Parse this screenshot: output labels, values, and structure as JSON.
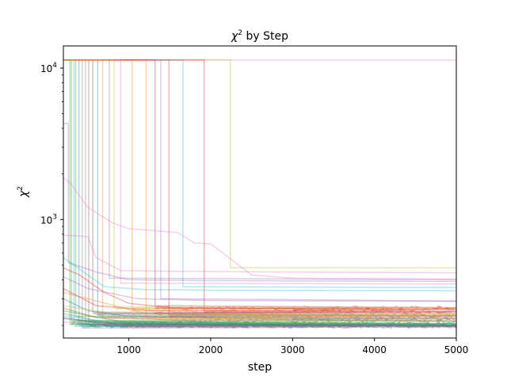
{
  "chart_data": {
    "type": "line",
    "title_prefix": "χ",
    "title_sup": "2",
    "title_suffix": " by Step",
    "xlabel": "step",
    "ylabel_base": "χ",
    "ylabel_sup": "2",
    "xlim": [
      200,
      5000
    ],
    "ylim": [
      165,
      14000
    ],
    "yscale": "log",
    "x_ticks": [
      1000,
      2000,
      3000,
      4000,
      5000
    ],
    "x_tick_labels": [
      "1000",
      "2000",
      "3000",
      "4000",
      "5000"
    ],
    "y_ticks": [
      1000,
      10000
    ],
    "y_tick_base": "10",
    "y_tick_exponents": [
      "3",
      "4"
    ],
    "series_alpha": 0.35,
    "series": [
      {
        "color": "#1f77b4",
        "values": [
          [
            200,
            11300
          ],
          [
            390,
            11300
          ],
          [
            390,
            205
          ],
          [
            5000,
            198
          ]
        ]
      },
      {
        "color": "#ff7f0e",
        "values": [
          [
            200,
            11300
          ],
          [
            1040,
            11300
          ],
          [
            1040,
            260
          ],
          [
            5000,
            255
          ]
        ]
      },
      {
        "color": "#2ca02c",
        "values": [
          [
            200,
            11300
          ],
          [
            300,
            11300
          ],
          [
            300,
            215
          ],
          [
            5000,
            205
          ]
        ]
      },
      {
        "color": "#d62728",
        "values": [
          [
            200,
            11300
          ],
          [
            1490,
            11300
          ],
          [
            1490,
            235
          ],
          [
            5000,
            230
          ]
        ]
      },
      {
        "color": "#9467bd",
        "values": [
          [
            200,
            11300
          ],
          [
            1390,
            11300
          ],
          [
            1390,
            300
          ],
          [
            5000,
            290
          ]
        ]
      },
      {
        "color": "#8c564b",
        "values": [
          [
            200,
            11300
          ],
          [
            510,
            11300
          ],
          [
            510,
            210
          ],
          [
            5000,
            200
          ]
        ]
      },
      {
        "color": "#e377c2",
        "values": [
          [
            200,
            11300
          ],
          [
            5000,
            11300
          ]
        ]
      },
      {
        "color": "#7f7f7f",
        "values": [
          [
            200,
            11300
          ],
          [
            430,
            11300
          ],
          [
            430,
            200
          ],
          [
            5000,
            196
          ]
        ]
      },
      {
        "color": "#bcbd22",
        "values": [
          [
            200,
            11300
          ],
          [
            2240,
            11300
          ],
          [
            2240,
            480
          ],
          [
            5000,
            480
          ]
        ]
      },
      {
        "color": "#17becf",
        "values": [
          [
            200,
            11300
          ],
          [
            1660,
            11300
          ],
          [
            1660,
            360
          ],
          [
            5000,
            355
          ]
        ]
      },
      {
        "color": "#1f77b4",
        "values": [
          [
            200,
            11300
          ],
          [
            620,
            11300
          ],
          [
            620,
            240
          ],
          [
            5000,
            232
          ]
        ]
      },
      {
        "color": "#ff7f0e",
        "values": [
          [
            200,
            11300
          ],
          [
            1210,
            11300
          ],
          [
            1210,
            225
          ],
          [
            5000,
            220
          ]
        ]
      },
      {
        "color": "#2ca02c",
        "values": [
          [
            200,
            11300
          ],
          [
            350,
            11300
          ],
          [
            350,
            230
          ],
          [
            5000,
            212
          ]
        ]
      },
      {
        "color": "#d62728",
        "values": [
          [
            200,
            11300
          ],
          [
            1920,
            11300
          ],
          [
            1920,
            250
          ],
          [
            5000,
            248
          ]
        ]
      },
      {
        "color": "#9467bd",
        "values": [
          [
            200,
            11300
          ],
          [
            760,
            11300
          ],
          [
            760,
            410
          ],
          [
            5000,
            400
          ]
        ]
      },
      {
        "color": "#8c564b",
        "values": [
          [
            200,
            11300
          ],
          [
            560,
            11300
          ],
          [
            560,
            245
          ],
          [
            5000,
            240
          ]
        ]
      },
      {
        "color": "#e377c2",
        "values": [
          [
            200,
            11300
          ],
          [
            900,
            11300
          ],
          [
            900,
            380
          ],
          [
            5000,
            375
          ]
        ]
      },
      {
        "color": "#7f7f7f",
        "values": [
          [
            200,
            11300
          ],
          [
            470,
            11300
          ],
          [
            470,
            203
          ],
          [
            5000,
            199
          ]
        ]
      },
      {
        "color": "#bcbd22",
        "values": [
          [
            200,
            11300
          ],
          [
            820,
            11300
          ],
          [
            820,
            265
          ],
          [
            5000,
            260
          ]
        ]
      },
      {
        "color": "#17becf",
        "values": [
          [
            200,
            11300
          ],
          [
            330,
            11300
          ],
          [
            330,
            208
          ],
          [
            5000,
            201
          ]
        ]
      },
      {
        "color": "#d62728",
        "values": [
          [
            200,
            11300
          ],
          [
            1320,
            11300
          ],
          [
            1320,
            270
          ],
          [
            5000,
            262
          ]
        ]
      },
      {
        "color": "#ff7f0e",
        "values": [
          [
            200,
            11300
          ],
          [
            680,
            11300
          ],
          [
            680,
            228
          ],
          [
            5000,
            225
          ]
        ]
      },
      {
        "color": "#2ca02c",
        "values": [
          [
            200,
            11300
          ],
          [
            280,
            11300
          ],
          [
            280,
            212
          ],
          [
            5000,
            203
          ]
        ]
      },
      {
        "color": "#e377c2",
        "values": [
          [
            200,
            1900
          ],
          [
            300,
            1700
          ],
          [
            500,
            1200
          ],
          [
            800,
            950
          ],
          [
            1000,
            870
          ],
          [
            1600,
            820
          ],
          [
            1800,
            700
          ],
          [
            2000,
            690
          ],
          [
            2300,
            520
          ],
          [
            2500,
            430
          ],
          [
            3000,
            410
          ],
          [
            5000,
            405
          ]
        ]
      },
      {
        "color": "#9467bd",
        "values": [
          [
            200,
            4300
          ],
          [
            260,
            4300
          ],
          [
            260,
            520
          ],
          [
            600,
            450
          ],
          [
            1000,
            400
          ],
          [
            2000,
            395
          ],
          [
            5000,
            390
          ]
        ]
      },
      {
        "color": "#e377c2",
        "values": [
          [
            200,
            790
          ],
          [
            500,
            770
          ],
          [
            600,
            560
          ],
          [
            900,
            460
          ],
          [
            1600,
            455
          ],
          [
            3000,
            450
          ],
          [
            5000,
            445
          ]
        ]
      },
      {
        "color": "#17becf",
        "values": [
          [
            200,
            560
          ],
          [
            400,
            470
          ],
          [
            700,
            360
          ],
          [
            1200,
            345
          ],
          [
            2500,
            340
          ],
          [
            5000,
            338
          ]
        ]
      },
      {
        "color": "#d62728",
        "values": [
          [
            200,
            480
          ],
          [
            400,
            430
          ],
          [
            700,
            330
          ],
          [
            1000,
            280
          ],
          [
            1500,
            262
          ],
          [
            3000,
            258
          ],
          [
            5000,
            255
          ]
        ]
      },
      {
        "color": "#1f77b4",
        "values": [
          [
            200,
            300
          ],
          [
            500,
            250
          ],
          [
            1000,
            230
          ],
          [
            3000,
            225
          ],
          [
            5000,
            222
          ]
        ]
      },
      {
        "color": "#ff7f0e",
        "values": [
          [
            200,
            330
          ],
          [
            600,
            290
          ],
          [
            1200,
            240
          ],
          [
            2500,
            236
          ],
          [
            5000,
            233
          ]
        ]
      },
      {
        "color": "#8c564b",
        "values": [
          [
            200,
            260
          ],
          [
            600,
            225
          ],
          [
            1500,
            218
          ],
          [
            5000,
            215
          ]
        ]
      },
      {
        "color": "#9467bd",
        "values": [
          [
            200,
            420
          ],
          [
            500,
            350
          ],
          [
            1100,
            300
          ],
          [
            2000,
            292
          ],
          [
            5000,
            288
          ]
        ]
      },
      {
        "color": "#bcbd22",
        "values": [
          [
            200,
            270
          ],
          [
            800,
            240
          ],
          [
            2000,
            236
          ],
          [
            5000,
            234
          ]
        ]
      },
      {
        "color": "#7f7f7f",
        "values": [
          [
            200,
            240
          ],
          [
            700,
            210
          ],
          [
            5000,
            201
          ]
        ]
      },
      {
        "color": "#2ca02c",
        "values": [
          [
            200,
            250
          ],
          [
            900,
            212
          ],
          [
            5000,
            205
          ]
        ]
      },
      {
        "color": "#1f77b4",
        "values": [
          [
            200,
            225
          ],
          [
            700,
            205
          ],
          [
            5000,
            197
          ]
        ]
      },
      {
        "color": "#17becf",
        "values": [
          [
            200,
            232
          ],
          [
            800,
            208
          ],
          [
            5000,
            202
          ]
        ]
      },
      {
        "color": "#d62728",
        "values": [
          [
            200,
            350
          ],
          [
            600,
            270
          ],
          [
            1300,
            250
          ],
          [
            5000,
            246
          ]
        ]
      },
      {
        "color": "#e377c2",
        "values": [
          [
            200,
            210
          ],
          [
            1000,
            200
          ],
          [
            5000,
            196
          ]
        ]
      },
      {
        "color": "#8c564b",
        "values": [
          [
            200,
            222
          ],
          [
            900,
            204
          ],
          [
            5000,
            199
          ]
        ]
      }
    ]
  }
}
